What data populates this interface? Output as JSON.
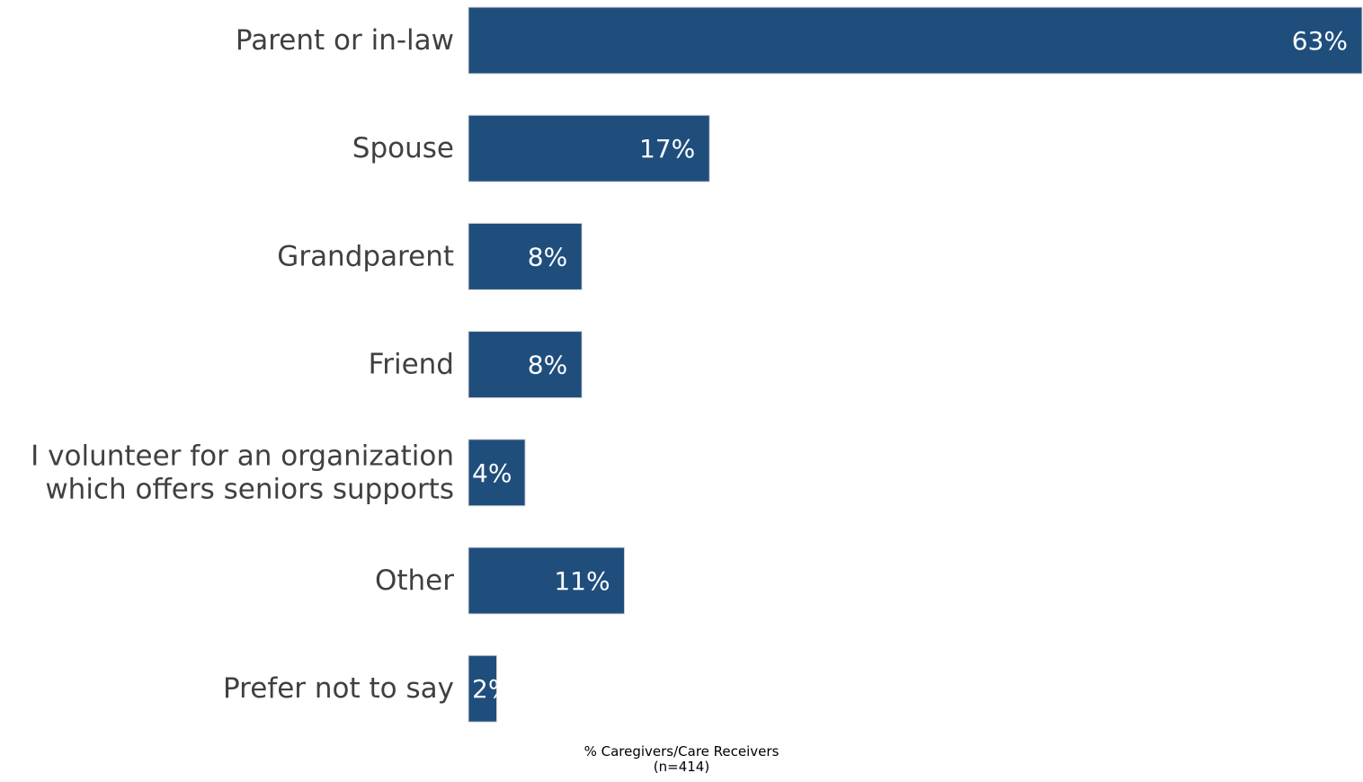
{
  "chart_data": {
    "type": "bar",
    "orientation": "horizontal",
    "categories": [
      "Parent or in-law",
      "Spouse",
      "Grandparent",
      "Friend",
      "I volunteer for an organization which offers seniors supports",
      "Other",
      "Prefer not to say"
    ],
    "values": [
      63,
      17,
      8,
      8,
      4,
      11,
      2
    ],
    "value_labels": [
      "63%",
      "17%",
      "8%",
      "8%",
      "4%",
      "11%",
      "2%"
    ],
    "xlabel_line1": "% Caregivers/Care Receivers",
    "xlabel_line2": "(n=414)",
    "title": "",
    "xlim": [
      0,
      63
    ],
    "grid": false,
    "legend": "none",
    "bar_color": "#1f4e7d"
  }
}
